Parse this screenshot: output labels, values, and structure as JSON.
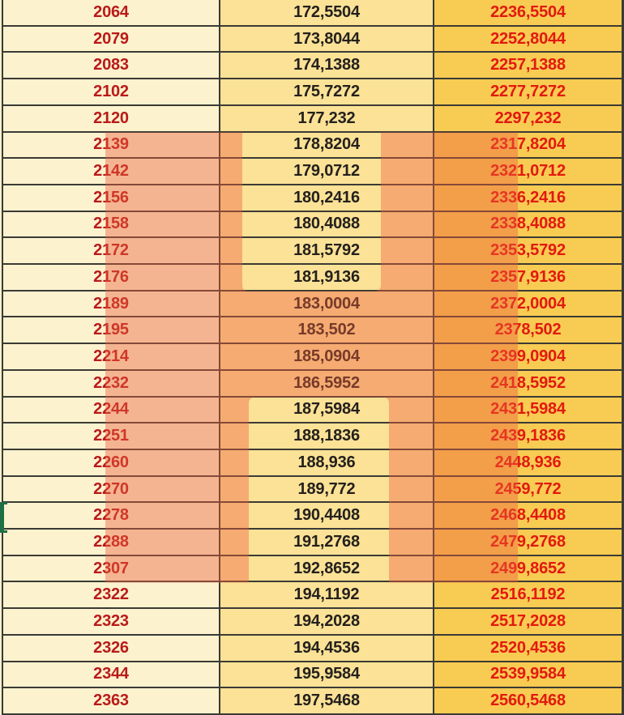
{
  "table": {
    "rows": [
      {
        "c1": "2064",
        "c2": "172,5504",
        "c3": "2236,5504"
      },
      {
        "c1": "2079",
        "c2": "173,8044",
        "c3": "2252,8044"
      },
      {
        "c1": "2083",
        "c2": "174,1388",
        "c3": "2257,1388"
      },
      {
        "c1": "2102",
        "c2": "175,7272",
        "c3": "2277,7272"
      },
      {
        "c1": "2120",
        "c2": "177,232",
        "c3": "2297,232"
      },
      {
        "c1": "2139",
        "c2": "178,8204",
        "c3": "2317,8204"
      },
      {
        "c1": "2142",
        "c2": "179,0712",
        "c3": "2321,0712"
      },
      {
        "c1": "2156",
        "c2": "180,2416",
        "c3": "2336,2416"
      },
      {
        "c1": "2158",
        "c2": "180,4088",
        "c3": "2338,4088"
      },
      {
        "c1": "2172",
        "c2": "181,5792",
        "c3": "2353,5792"
      },
      {
        "c1": "2176",
        "c2": "181,9136",
        "c3": "2357,9136"
      },
      {
        "c1": "2189",
        "c2": "183,0004",
        "c3": "2372,0004"
      },
      {
        "c1": "2195",
        "c2": "183,502",
        "c3": "2378,502"
      },
      {
        "c1": "2214",
        "c2": "185,0904",
        "c3": "2399,0904"
      },
      {
        "c1": "2232",
        "c2": "186,5952",
        "c3": "2418,5952"
      },
      {
        "c1": "2244",
        "c2": "187,5984",
        "c3": "2431,5984"
      },
      {
        "c1": "2251",
        "c2": "188,1836",
        "c3": "2439,1836"
      },
      {
        "c1": "2260",
        "c2": "188,936",
        "c3": "2448,936"
      },
      {
        "c1": "2270",
        "c2": "189,772",
        "c3": "2459,772"
      },
      {
        "c1": "2278",
        "c2": "190,4408",
        "c3": "2468,4408"
      },
      {
        "c1": "2288",
        "c2": "191,2768",
        "c3": "2479,2768"
      },
      {
        "c1": "2307",
        "c2": "192,8652",
        "c3": "2499,8652"
      },
      {
        "c1": "2322",
        "c2": "194,1192",
        "c3": "2516,1192"
      },
      {
        "c1": "2323",
        "c2": "194,2028",
        "c3": "2517,2028"
      },
      {
        "c1": "2326",
        "c2": "194,4536",
        "c3": "2520,4536"
      },
      {
        "c1": "2344",
        "c2": "195,9584",
        "c3": "2539,9584"
      },
      {
        "c1": "2363",
        "c2": "197,5468",
        "c3": "2560,5468"
      }
    ]
  },
  "highlight": {
    "description": "semi-transparent H-shaped salmon highlight covering rows 2139-2307",
    "first_highlighted_row": "2139",
    "last_highlighted_row": "2307"
  },
  "selection": {
    "row_value": "2278"
  },
  "colors": {
    "col1_bg": "#FCF2CE",
    "col2_bg": "#FBE296",
    "col3_bg": "#F8CB52",
    "col1_text": "#B91A1A",
    "col2_text": "#24201D",
    "col3_text": "#E2190F",
    "border": "#3B3A35",
    "overlay_fill": "rgba(236,95,61,0.42)",
    "selection_green": "#1E7044"
  }
}
